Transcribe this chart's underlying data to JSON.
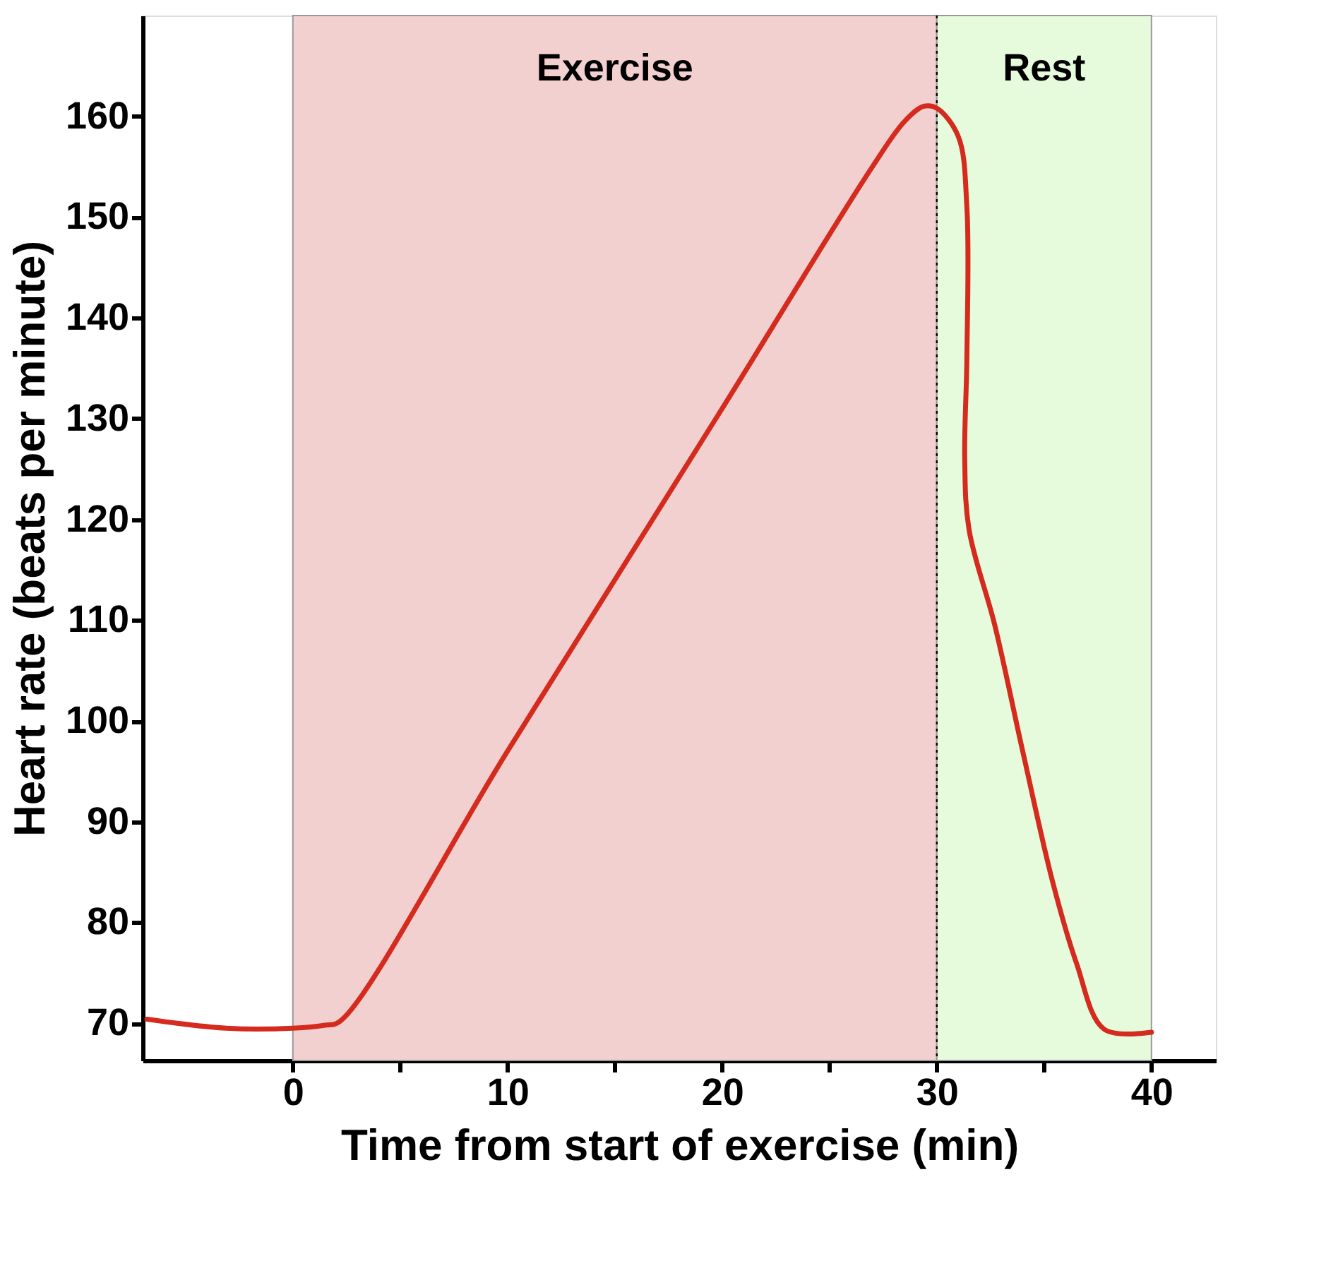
{
  "chart_data": {
    "type": "line",
    "xlabel": "Time from start of exercise (min)",
    "ylabel": "Heart rate (beats per minute)",
    "xlim": [
      -7,
      43
    ],
    "ylim": [
      66.3,
      170
    ],
    "xticks": [
      0,
      {
        "value": 5,
        "label": null
      },
      10,
      {
        "value": 15,
        "label": null
      },
      20,
      {
        "value": 25,
        "label": null
      },
      30,
      {
        "value": 35,
        "label": null
      },
      40
    ],
    "yticks": [
      70,
      80,
      90,
      100,
      110,
      120,
      130,
      140,
      150,
      160
    ],
    "grid": false,
    "marker": "none",
    "line_style": "solid",
    "series": [
      {
        "color": "#d42b1e",
        "x": [
          -6.8,
          -3.1,
          0,
          1.5,
          2.2,
          10,
          20,
          27,
          28.5,
          29.4,
          30,
          31,
          31.4,
          31.4,
          31.3,
          31.5,
          32.7,
          34,
          35.4,
          36.5,
          37.8,
          40
        ],
        "values": [
          70.4,
          69.5,
          69.5,
          69.8,
          70.2,
          97,
          131,
          155,
          159.5,
          161,
          160.8,
          158,
          151,
          136,
          126,
          119,
          109.5,
          97,
          84,
          76,
          69.4,
          69.1
        ]
      }
    ],
    "bands": [
      {
        "axis": "x",
        "from": 0,
        "to": 30,
        "label": "Exercise",
        "color": "#f2d0cf"
      },
      {
        "axis": "x",
        "from": 30,
        "to": 40,
        "label": "Rest",
        "color": "#e6fadc"
      }
    ],
    "ref_lines": [
      {
        "axis": "x",
        "value": 30,
        "color": "#000000",
        "line_style": "dotted"
      }
    ]
  }
}
